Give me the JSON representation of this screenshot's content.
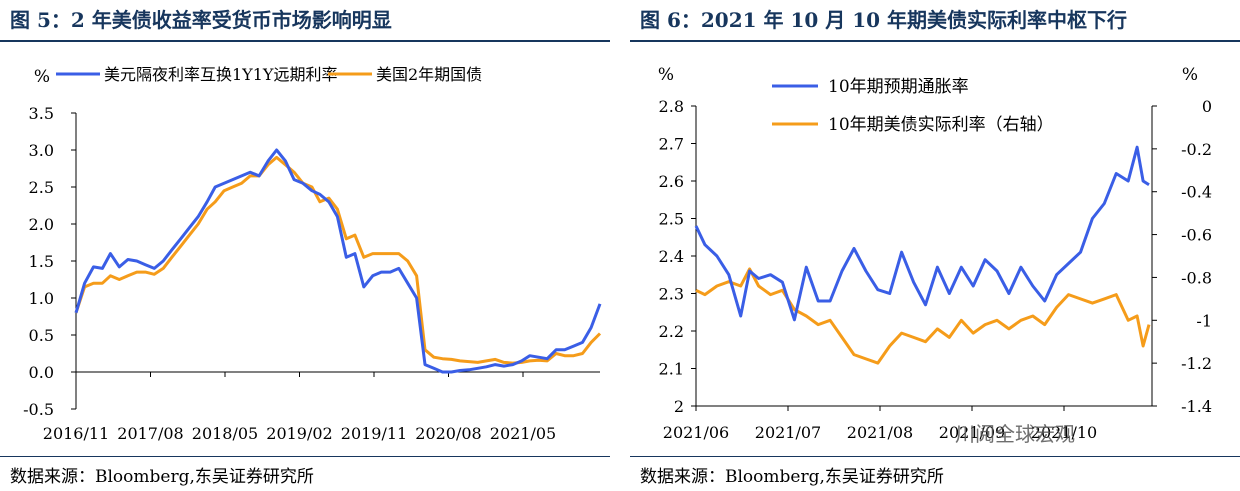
{
  "left_panel": {
    "title": "图 5：2 年美债收益率受货币市场影响明显",
    "source": "数据来源：Bloomberg,东吴证券研究所"
  },
  "right_panel": {
    "title": "图 6：2021 年 10 月 10 年期美债实际利率中枢下行",
    "source": "数据来源：Bloomberg,东吴证券研究所"
  },
  "watermark": "川阅全球宏观",
  "colors": {
    "blue": "#3a5ee6",
    "orange": "#f59c1a",
    "title": "#17365d"
  },
  "chart_data": [
    {
      "type": "line",
      "ylabel": "%",
      "ylim": [
        -0.5,
        3.5
      ],
      "yticks": [
        "3.5",
        "3.0",
        "2.5",
        "2.0",
        "1.5",
        "1.0",
        "0.5",
        "0.0",
        "-0.5"
      ],
      "ytick_values": [
        3.5,
        3.0,
        2.5,
        2.0,
        1.5,
        1.0,
        0.5,
        0.0,
        -0.5
      ],
      "xtick_labels": [
        "2016/11",
        "2017/08",
        "2018/05",
        "2019/02",
        "2019/11",
        "2020/08",
        "2021/05"
      ],
      "x_range": [
        "2016-11",
        "2021-11"
      ],
      "legend_position": "top",
      "series": [
        {
          "name": "美元隔夜利率互换1Y1Y远期利率",
          "color": "#3a5ee6",
          "x": [
            "2016-11",
            "2016-12",
            "2017-01",
            "2017-02",
            "2017-03",
            "2017-04",
            "2017-05",
            "2017-06",
            "2017-07",
            "2017-08",
            "2017-09",
            "2017-10",
            "2017-11",
            "2017-12",
            "2018-01",
            "2018-02",
            "2018-03",
            "2018-04",
            "2018-05",
            "2018-06",
            "2018-07",
            "2018-08",
            "2018-09",
            "2018-10",
            "2018-11",
            "2018-12",
            "2019-01",
            "2019-02",
            "2019-03",
            "2019-04",
            "2019-05",
            "2019-06",
            "2019-07",
            "2019-08",
            "2019-09",
            "2019-10",
            "2019-11",
            "2019-12",
            "2020-01",
            "2020-02",
            "2020-03",
            "2020-04",
            "2020-05",
            "2020-06",
            "2020-07",
            "2020-08",
            "2020-09",
            "2020-10",
            "2020-11",
            "2020-12",
            "2021-01",
            "2021-02",
            "2021-03",
            "2021-04",
            "2021-05",
            "2021-06",
            "2021-07",
            "2021-08",
            "2021-09",
            "2021-10",
            "2021-11"
          ],
          "y": [
            0.8,
            1.2,
            1.42,
            1.4,
            1.6,
            1.42,
            1.52,
            1.5,
            1.45,
            1.4,
            1.5,
            1.65,
            1.8,
            1.95,
            2.1,
            2.3,
            2.5,
            2.55,
            2.6,
            2.65,
            2.7,
            2.65,
            2.85,
            3.0,
            2.85,
            2.6,
            2.55,
            2.45,
            2.4,
            2.3,
            2.1,
            1.55,
            1.6,
            1.15,
            1.3,
            1.35,
            1.35,
            1.4,
            1.2,
            1.0,
            0.1,
            0.05,
            0.0,
            0.0,
            0.02,
            0.03,
            0.05,
            0.07,
            0.1,
            0.08,
            0.1,
            0.15,
            0.22,
            0.2,
            0.18,
            0.3,
            0.3,
            0.35,
            0.4,
            0.6,
            0.92
          ]
        },
        {
          "name": "美国2年期国债",
          "color": "#f59c1a",
          "x": [
            "2016-11",
            "2016-12",
            "2017-01",
            "2017-02",
            "2017-03",
            "2017-04",
            "2017-05",
            "2017-06",
            "2017-07",
            "2017-08",
            "2017-09",
            "2017-10",
            "2017-11",
            "2017-12",
            "2018-01",
            "2018-02",
            "2018-03",
            "2018-04",
            "2018-05",
            "2018-06",
            "2018-07",
            "2018-08",
            "2018-09",
            "2018-10",
            "2018-11",
            "2018-12",
            "2019-01",
            "2019-02",
            "2019-03",
            "2019-04",
            "2019-05",
            "2019-06",
            "2019-07",
            "2019-08",
            "2019-09",
            "2019-10",
            "2019-11",
            "2019-12",
            "2020-01",
            "2020-02",
            "2020-03",
            "2020-04",
            "2020-05",
            "2020-06",
            "2020-07",
            "2020-08",
            "2020-09",
            "2020-10",
            "2020-11",
            "2020-12",
            "2021-01",
            "2021-02",
            "2021-03",
            "2021-04",
            "2021-05",
            "2021-06",
            "2021-07",
            "2021-08",
            "2021-09",
            "2021-10",
            "2021-11"
          ],
          "y": [
            0.8,
            1.15,
            1.2,
            1.2,
            1.3,
            1.25,
            1.3,
            1.35,
            1.35,
            1.32,
            1.4,
            1.55,
            1.7,
            1.85,
            2.0,
            2.2,
            2.3,
            2.45,
            2.5,
            2.55,
            2.65,
            2.65,
            2.8,
            2.9,
            2.8,
            2.7,
            2.55,
            2.5,
            2.3,
            2.35,
            2.2,
            1.8,
            1.85,
            1.55,
            1.6,
            1.6,
            1.6,
            1.6,
            1.5,
            1.3,
            0.3,
            0.2,
            0.18,
            0.17,
            0.15,
            0.14,
            0.13,
            0.15,
            0.17,
            0.13,
            0.12,
            0.13,
            0.15,
            0.16,
            0.15,
            0.25,
            0.22,
            0.22,
            0.25,
            0.4,
            0.52
          ]
        }
      ]
    },
    {
      "type": "line",
      "ylabel": "%",
      "y2label": "%",
      "ylim": [
        2.0,
        2.8
      ],
      "y2lim": [
        -1.4,
        0.0
      ],
      "yticks": [
        "2.8",
        "2.7",
        "2.6",
        "2.5",
        "2.4",
        "2.3",
        "2.2",
        "2.1",
        "2"
      ],
      "ytick_values": [
        2.8,
        2.7,
        2.6,
        2.5,
        2.4,
        2.3,
        2.2,
        2.1,
        2.0
      ],
      "y2ticks": [
        "0",
        "-0.2",
        "-0.4",
        "-0.6",
        "-0.8",
        "-1",
        "-1.2",
        "-1.4"
      ],
      "y2tick_values": [
        0,
        -0.2,
        -0.4,
        -0.6,
        -0.8,
        -1.0,
        -1.2,
        -1.4
      ],
      "xtick_labels": [
        "2021/06",
        "2021/07",
        "2021/08",
        "2021/09",
        "2021/10"
      ],
      "x_range": [
        "2021-06-01",
        "2021-11-01"
      ],
      "legend_position": "top",
      "series": [
        {
          "name": "10年期预期通胀率",
          "color": "#3a5ee6",
          "axis": "left",
          "x": [
            "2021-06-01",
            "2021-06-04",
            "2021-06-08",
            "2021-06-12",
            "2021-06-16",
            "2021-06-19",
            "2021-06-22",
            "2021-06-26",
            "2021-06-30",
            "2021-07-04",
            "2021-07-08",
            "2021-07-12",
            "2021-07-16",
            "2021-07-20",
            "2021-07-24",
            "2021-07-28",
            "2021-08-01",
            "2021-08-05",
            "2021-08-09",
            "2021-08-13",
            "2021-08-17",
            "2021-08-21",
            "2021-08-25",
            "2021-08-29",
            "2021-09-02",
            "2021-09-06",
            "2021-09-10",
            "2021-09-14",
            "2021-09-18",
            "2021-09-22",
            "2021-09-26",
            "2021-09-30",
            "2021-10-04",
            "2021-10-08",
            "2021-10-12",
            "2021-10-16",
            "2021-10-20",
            "2021-10-24",
            "2021-10-27",
            "2021-10-29",
            "2021-10-31"
          ],
          "y": [
            2.48,
            2.43,
            2.4,
            2.35,
            2.24,
            2.36,
            2.34,
            2.35,
            2.33,
            2.23,
            2.37,
            2.28,
            2.28,
            2.36,
            2.42,
            2.36,
            2.31,
            2.3,
            2.41,
            2.33,
            2.27,
            2.37,
            2.3,
            2.37,
            2.32,
            2.39,
            2.36,
            2.3,
            2.37,
            2.32,
            2.28,
            2.35,
            2.38,
            2.41,
            2.5,
            2.54,
            2.62,
            2.6,
            2.69,
            2.6,
            2.59
          ]
        },
        {
          "name": "10年期美债实际利率（右轴）",
          "color": "#f59c1a",
          "axis": "right",
          "x": [
            "2021-06-01",
            "2021-06-04",
            "2021-06-08",
            "2021-06-12",
            "2021-06-16",
            "2021-06-19",
            "2021-06-22",
            "2021-06-26",
            "2021-06-30",
            "2021-07-04",
            "2021-07-08",
            "2021-07-12",
            "2021-07-16",
            "2021-07-20",
            "2021-07-24",
            "2021-07-28",
            "2021-08-01",
            "2021-08-05",
            "2021-08-09",
            "2021-08-13",
            "2021-08-17",
            "2021-08-21",
            "2021-08-25",
            "2021-08-29",
            "2021-09-02",
            "2021-09-06",
            "2021-09-10",
            "2021-09-14",
            "2021-09-18",
            "2021-09-22",
            "2021-09-26",
            "2021-09-30",
            "2021-10-04",
            "2021-10-08",
            "2021-10-12",
            "2021-10-16",
            "2021-10-20",
            "2021-10-24",
            "2021-10-27",
            "2021-10-29",
            "2021-10-31"
          ],
          "y": [
            -0.86,
            -0.88,
            -0.84,
            -0.82,
            -0.84,
            -0.76,
            -0.84,
            -0.88,
            -0.86,
            -0.95,
            -0.98,
            -1.02,
            -1.0,
            -1.08,
            -1.16,
            -1.18,
            -1.2,
            -1.12,
            -1.06,
            -1.08,
            -1.1,
            -1.04,
            -1.08,
            -1.0,
            -1.06,
            -1.02,
            -1.0,
            -1.04,
            -1.0,
            -0.98,
            -1.02,
            -0.94,
            -0.88,
            -0.9,
            -0.92,
            -0.9,
            -0.88,
            -1.0,
            -0.98,
            -1.12,
            -1.02
          ]
        }
      ]
    }
  ]
}
